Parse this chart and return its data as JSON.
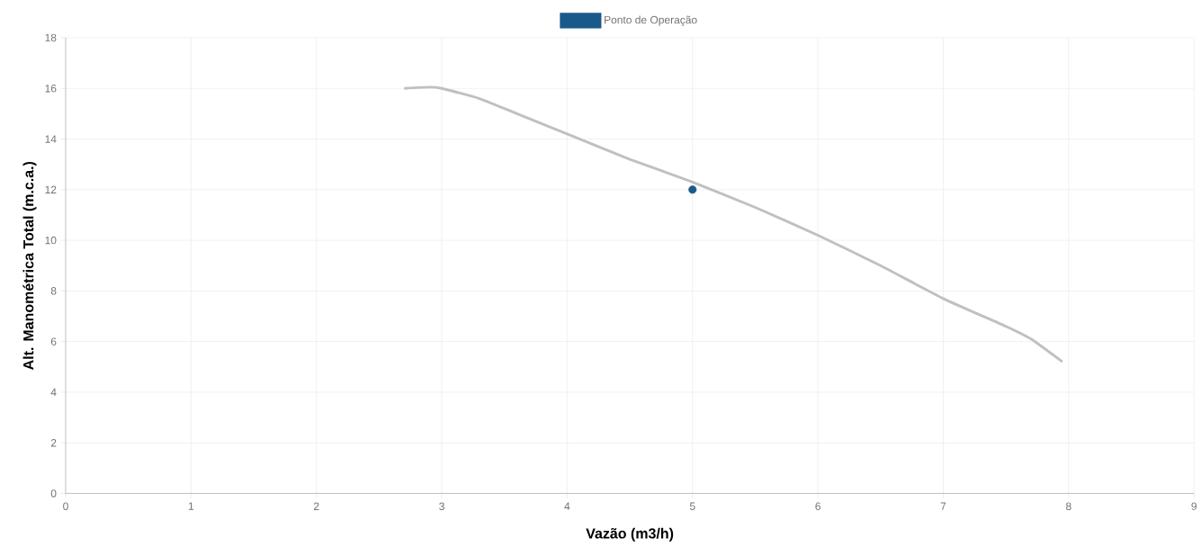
{
  "chart_data": {
    "type": "line",
    "xlabel": "Vazão (m3/h)",
    "ylabel": "Alt. Manométrica Total (m.c.a.)",
    "xlim": [
      0,
      9
    ],
    "ylim": [
      0,
      18
    ],
    "xticks": [
      0,
      1,
      2,
      3,
      4,
      5,
      6,
      7,
      8,
      9
    ],
    "yticks": [
      0,
      2,
      4,
      6,
      8,
      10,
      12,
      14,
      16,
      18
    ],
    "grid": true,
    "legend": "top",
    "series": [
      {
        "color": "#c0c0c0",
        "marker": "none",
        "line_style": "solid",
        "x": [
          2.7,
          2.9,
          3.0,
          3.3,
          3.6,
          4.0,
          4.5,
          5.0,
          5.5,
          6.0,
          6.5,
          7.0,
          7.5,
          7.7,
          7.95
        ],
        "values": [
          16.0,
          16.05,
          16.0,
          15.6,
          15.0,
          14.2,
          13.2,
          12.3,
          11.3,
          10.2,
          9.0,
          7.7,
          6.6,
          6.1,
          5.2
        ]
      },
      {
        "type": "scatter",
        "name": "Ponto de Operação",
        "color": "#1a5a8a",
        "marker": "circle",
        "x": [
          5
        ],
        "values": [
          12
        ]
      }
    ]
  }
}
